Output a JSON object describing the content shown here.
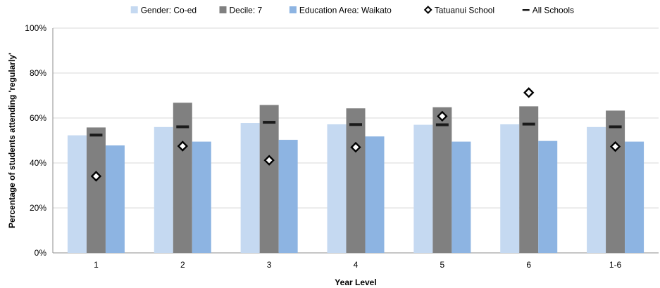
{
  "chart_data": {
    "type": "bar",
    "title": "",
    "xlabel": "Year Level",
    "ylabel": "Percentage of students attending 'regularly'",
    "categories": [
      "1",
      "2",
      "3",
      "4",
      "5",
      "6",
      "1-6"
    ],
    "ylim": [
      0,
      100
    ],
    "yticks": [
      "0%",
      "20%",
      "40%",
      "60%",
      "80%",
      "100%"
    ],
    "grid": "horizontal",
    "legend_position": "top",
    "series": [
      {
        "name": "Gender: Co-ed",
        "kind": "bar",
        "color": "#c5d9f1",
        "values": [
          52.3,
          56.0,
          57.8,
          57.2,
          57.0,
          57.2,
          56.0
        ]
      },
      {
        "name": "Decile: 7",
        "kind": "bar",
        "color": "#808080",
        "values": [
          55.8,
          66.8,
          65.8,
          64.3,
          64.8,
          65.2,
          63.3
        ]
      },
      {
        "name": "Education Area: Waikato",
        "kind": "bar",
        "color": "#8db4e2",
        "values": [
          47.8,
          49.5,
          50.3,
          51.8,
          49.5,
          49.8,
          49.5
        ]
      },
      {
        "name": "Tatuanui School",
        "kind": "marker-diamond",
        "color": "#000000",
        "values": [
          34.1,
          47.5,
          41.2,
          47.0,
          60.8,
          71.3,
          47.3
        ]
      },
      {
        "name": "All Schools",
        "kind": "marker-dash",
        "color": "#1a1a1a",
        "values": [
          52.4,
          56.1,
          58.1,
          57.1,
          57.0,
          57.3,
          56.1
        ]
      }
    ]
  }
}
